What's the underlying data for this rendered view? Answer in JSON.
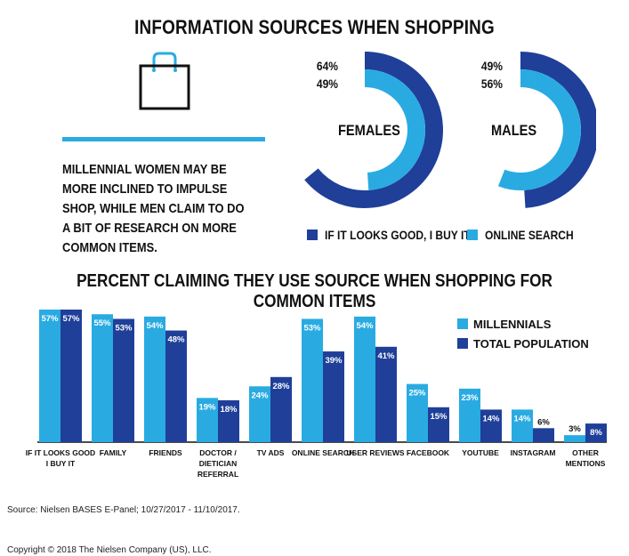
{
  "top_title": "INFORMATION SOURCES WHEN SHOPPING",
  "insight_text": "MILLENNIAL WOMEN MAY BE MORE INCLINED TO IMPULSE SHOP, WHILE MEN CLAIM TO DO A BIT OF RESEARCH ON MORE COMMON ITEMS.",
  "bottom_title": "PERCENT CLAIMING THEY USE SOURCE WHEN SHOPPING FOR COMMON ITEMS",
  "source": "Source: Nielsen BASES E-Panel; 10/27/2017 - 11/10/2017.",
  "copyright": "Copyright © 2018 The Nielsen Company (US), LLC.",
  "colors": {
    "dark_blue": "#1f3f99",
    "light_blue": "#29abe2",
    "accent_rule": "#29abe2"
  },
  "icons": {
    "bag": "shopping-bag-icon"
  },
  "chart_data": [
    {
      "type": "donut",
      "label": "FEMALES",
      "series": [
        {
          "name": "IF IT LOOKS GOOD, I BUY IT",
          "value": 64,
          "label": "64%"
        },
        {
          "name": "ONLINE SEARCH",
          "value": 49,
          "label": "49%"
        }
      ]
    },
    {
      "type": "donut",
      "label": "MALES",
      "series": [
        {
          "name": "IF IT LOOKS GOOD, I BUY IT",
          "value": 49,
          "label": "49%"
        },
        {
          "name": "ONLINE SEARCH",
          "value": 56,
          "label": "56%"
        }
      ]
    },
    {
      "type": "bar",
      "title": "PERCENT CLAIMING THEY USE SOURCE WHEN SHOPPING FOR COMMON ITEMS",
      "legend_position": "top-right",
      "categories": [
        [
          "IF IT LOOKS GOOD",
          "I BUY IT"
        ],
        [
          "FAMILY"
        ],
        [
          "FRIENDS"
        ],
        [
          "DOCTOR /",
          "DIETICIAN",
          "REFERRAL"
        ],
        [
          "TV ADS"
        ],
        [
          "ONLINE SEARCH"
        ],
        [
          "USER REVIEWS"
        ],
        [
          "FACEBOOK"
        ],
        [
          "YOUTUBE"
        ],
        [
          "INSTAGRAM"
        ],
        [
          "OTHER",
          "MENTIONS"
        ]
      ],
      "series": [
        {
          "name": "MILLENNIALS",
          "values": [
            57,
            55,
            54,
            19,
            24,
            53,
            54,
            25,
            23,
            14,
            3
          ]
        },
        {
          "name": "TOTAL POPULATION",
          "values": [
            57,
            53,
            48,
            18,
            28,
            39,
            41,
            15,
            14,
            6,
            8
          ]
        }
      ],
      "ylim": [
        0,
        57
      ]
    }
  ]
}
